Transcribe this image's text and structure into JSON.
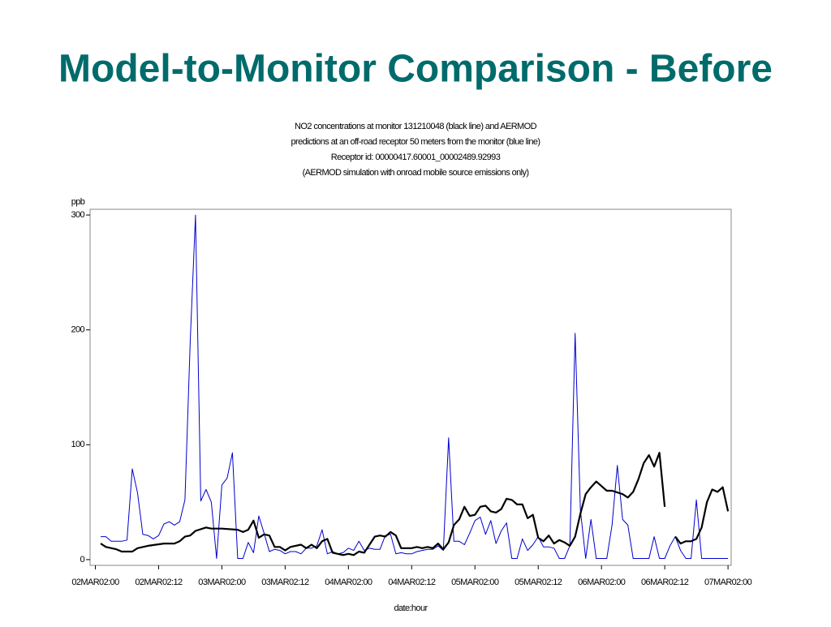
{
  "slide_title": "Model-to-Monitor Comparison - Before",
  "chart_data": {
    "type": "line",
    "title_lines": [
      "NO2 concentrations at monitor 131210048 (black line) and AERMOD",
      "predictions at an off-road receptor 50 meters from the monitor (blue line)",
      "Receptor id: 00000417.60001_00002489.92993",
      "(AERMOD simulation with onroad mobile source emissions only)"
    ],
    "y_label": "ppb",
    "x_label": "date:hour",
    "xlim": [
      -1,
      120.6
    ],
    "ylim": [
      -5,
      305
    ],
    "yticks": [
      0,
      100,
      200,
      300
    ],
    "xticks": [
      {
        "value": 0,
        "label": "02MAR02:00"
      },
      {
        "value": 12,
        "label": "02MAR02:12"
      },
      {
        "value": 24,
        "label": "03MAR02:00"
      },
      {
        "value": 36,
        "label": "03MAR02:12"
      },
      {
        "value": 48,
        "label": "04MAR02:00"
      },
      {
        "value": 60,
        "label": "04MAR02:12"
      },
      {
        "value": 72,
        "label": "05MAR02:00"
      },
      {
        "value": 84,
        "label": "05MAR02:12"
      },
      {
        "value": 96,
        "label": "06MAR02:00"
      },
      {
        "value": 108,
        "label": "06MAR02:12"
      },
      {
        "value": 120,
        "label": "07MAR02:00"
      }
    ],
    "series": [
      {
        "color": "#0000cc",
        "width": 1,
        "x": [
          1,
          2,
          3,
          5,
          6,
          7,
          8,
          9,
          10,
          11,
          12,
          13,
          14,
          15,
          16,
          17,
          18,
          19,
          20,
          21,
          22,
          23,
          24,
          25,
          26,
          27,
          28,
          29,
          30,
          31,
          32,
          33,
          34,
          35,
          36,
          37,
          38,
          39,
          40,
          41,
          42,
          43,
          44,
          45,
          46,
          47,
          48,
          49,
          50,
          51,
          52,
          53,
          54,
          55,
          56,
          57,
          58,
          59,
          60,
          61,
          62,
          63,
          64,
          65,
          66,
          67,
          68,
          69,
          70,
          71,
          72,
          73,
          74,
          75,
          76,
          77,
          78,
          79,
          80,
          81,
          82,
          83,
          84,
          85,
          86,
          87,
          88,
          89,
          90,
          91,
          92,
          93,
          94,
          95,
          96,
          97,
          98,
          99,
          100,
          101,
          102,
          103,
          104,
          105,
          106,
          107,
          108,
          109,
          110,
          111,
          112,
          113,
          114,
          115,
          116,
          117,
          118,
          119,
          120
        ],
        "values": [
          20,
          20,
          16,
          16,
          17,
          79,
          58,
          22,
          21,
          18,
          21,
          31,
          33,
          30,
          33,
          52,
          190,
          300,
          51,
          61,
          50,
          1,
          65,
          71,
          93,
          1,
          1,
          15,
          6,
          38,
          23,
          7,
          9,
          8,
          5,
          7,
          7,
          5,
          10,
          10,
          12,
          26,
          5,
          7,
          5,
          6,
          10,
          8,
          16,
          8,
          10,
          9,
          9,
          21,
          22,
          5,
          6,
          5,
          5,
          7,
          8,
          9,
          9,
          12,
          8,
          106,
          16,
          16,
          13,
          23,
          34,
          37,
          22,
          34,
          14,
          25,
          32,
          1,
          1,
          18,
          8,
          13,
          20,
          11,
          11,
          10,
          1,
          1,
          12,
          197,
          43,
          1,
          35,
          1,
          1,
          1,
          30,
          82,
          35,
          30,
          1,
          1,
          1,
          1,
          20,
          1,
          1,
          12,
          20,
          8,
          1,
          1,
          52,
          1,
          1,
          1,
          1,
          1,
          1
        ]
      },
      {
        "color": "#000000",
        "width": 2.2,
        "x": [
          1,
          2,
          4,
          5,
          7,
          8,
          10,
          13,
          15,
          16,
          17,
          18,
          19,
          21,
          22,
          24,
          27,
          28,
          29,
          30,
          31,
          32,
          33,
          34,
          35,
          36,
          37,
          39,
          40,
          41,
          42,
          43,
          44,
          45,
          47,
          48,
          49,
          50,
          51,
          53,
          54,
          55,
          56,
          57,
          58,
          60,
          61,
          62,
          63,
          64,
          65,
          66,
          67,
          68,
          69,
          70,
          71,
          72,
          73,
          74,
          75,
          76,
          77,
          78,
          79,
          80,
          81,
          82,
          83,
          84,
          85,
          86,
          87,
          88,
          89,
          90,
          91,
          92,
          93,
          94,
          95,
          96,
          97,
          98,
          100,
          101,
          102,
          103,
          104,
          105,
          106,
          107,
          108,
          109,
          110,
          111,
          112,
          113,
          114,
          115,
          116,
          117,
          118,
          119,
          120
        ],
        "values": [
          14,
          11,
          9,
          7,
          7,
          10,
          12,
          14,
          14,
          16,
          20,
          21,
          25,
          28,
          27,
          27,
          26,
          24,
          26,
          34,
          19,
          22,
          21,
          11,
          11,
          8,
          11,
          13,
          10,
          13,
          10,
          16,
          18,
          6,
          4,
          5,
          4,
          7,
          6,
          20,
          21,
          20,
          24,
          21,
          10,
          10,
          11,
          10,
          11,
          10,
          14,
          9,
          15,
          30,
          35,
          46,
          38,
          39,
          46,
          47,
          42,
          41,
          44,
          53,
          52,
          48,
          48,
          36,
          39,
          19,
          16,
          21,
          14,
          17,
          15,
          12,
          20,
          40,
          57,
          63,
          68,
          64,
          60,
          60,
          57,
          54,
          59,
          70,
          84,
          91,
          81,
          93,
          46,
          null,
          20,
          14,
          16,
          16,
          18,
          28,
          50,
          61,
          59,
          63,
          42
        ]
      }
    ]
  }
}
